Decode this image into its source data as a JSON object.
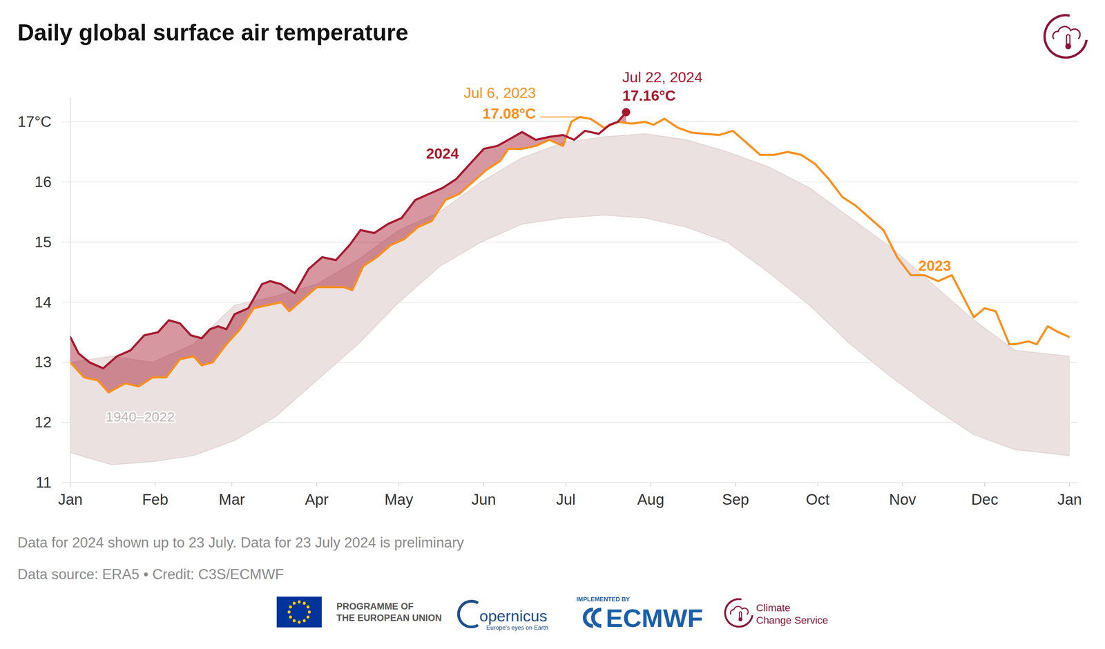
{
  "chart_data": {
    "type": "line",
    "title": "Daily global surface air temperature",
    "grid": true,
    "xlim": [
      0,
      365
    ],
    "xticks": [
      {
        "value": 0,
        "label": "Jan"
      },
      {
        "value": 31,
        "label": "Feb"
      },
      {
        "value": 59,
        "label": "Mar"
      },
      {
        "value": 90,
        "label": "Apr"
      },
      {
        "value": 120,
        "label": "May"
      },
      {
        "value": 151,
        "label": "Jun"
      },
      {
        "value": 181,
        "label": "Jul"
      },
      {
        "value": 212,
        "label": "Aug"
      },
      {
        "value": 243,
        "label": "Sep"
      },
      {
        "value": 273,
        "label": "Oct"
      },
      {
        "value": 304,
        "label": "Nov"
      },
      {
        "value": 334,
        "label": "Dec"
      },
      {
        "value": 365,
        "label": "Jan"
      }
    ],
    "ylim": [
      11,
      17.4
    ],
    "yticks": [
      11,
      12,
      13,
      14,
      15,
      16,
      {
        "value": 17,
        "label": "17°C"
      }
    ],
    "series": [
      {
        "name": "1940–2022",
        "type": "band",
        "color": "#ece1e1",
        "x": [
          0,
          15,
          30,
          45,
          60,
          75,
          90,
          105,
          120,
          135,
          150,
          165,
          180,
          195,
          210,
          225,
          240,
          255,
          270,
          285,
          300,
          315,
          330,
          345,
          365
        ],
        "values": [
          13.0,
          13.1,
          13.0,
          13.3,
          13.95,
          14.1,
          14.3,
          14.7,
          15.2,
          15.5,
          16.0,
          16.4,
          16.65,
          16.75,
          16.8,
          16.7,
          16.5,
          16.25,
          15.9,
          15.4,
          14.9,
          14.3,
          13.7,
          13.2,
          13.1
        ],
        "lower": [
          11.5,
          11.3,
          11.35,
          11.45,
          11.7,
          12.1,
          12.7,
          13.3,
          14.0,
          14.6,
          15.0,
          15.3,
          15.4,
          15.45,
          15.4,
          15.25,
          15.0,
          14.5,
          13.95,
          13.3,
          12.75,
          12.25,
          11.8,
          11.55,
          11.45
        ]
      },
      {
        "name": "2023",
        "type": "line",
        "color": "#f7901e",
        "x": [
          0,
          5,
          10,
          14,
          20,
          25,
          30,
          35,
          40,
          45,
          48,
          52,
          57,
          62,
          67,
          72,
          77,
          80,
          85,
          90,
          95,
          100,
          103,
          107,
          112,
          117,
          122,
          127,
          132,
          137,
          142,
          147,
          152,
          157,
          160,
          165,
          170,
          175,
          180,
          183,
          186,
          190,
          195,
          200,
          205,
          210,
          213,
          217,
          222,
          227,
          232,
          237,
          242,
          247,
          252,
          257,
          262,
          267,
          272,
          277,
          282,
          287,
          292,
          297,
          302,
          307,
          312,
          317,
          322,
          326,
          330,
          334,
          338,
          343,
          345,
          350,
          353,
          357,
          361,
          365
        ],
        "values": [
          13.0,
          12.75,
          12.7,
          12.5,
          12.65,
          12.6,
          12.75,
          12.75,
          13.05,
          13.1,
          12.95,
          13.0,
          13.3,
          13.55,
          13.9,
          13.95,
          14.0,
          13.85,
          14.05,
          14.25,
          14.25,
          14.25,
          14.2,
          14.6,
          14.75,
          14.95,
          15.05,
          15.25,
          15.35,
          15.7,
          15.8,
          16.0,
          16.2,
          16.35,
          16.55,
          16.55,
          16.6,
          16.7,
          16.6,
          17.0,
          17.08,
          17.05,
          16.9,
          17.0,
          16.97,
          17.0,
          16.95,
          17.05,
          16.9,
          16.82,
          16.8,
          16.78,
          16.85,
          16.65,
          16.45,
          16.45,
          16.5,
          16.45,
          16.3,
          16.05,
          15.75,
          15.6,
          15.4,
          15.2,
          14.75,
          14.45,
          14.45,
          14.35,
          14.45,
          14.1,
          13.75,
          13.9,
          13.85,
          13.3,
          13.3,
          13.35,
          13.3,
          13.6,
          13.5,
          13.42
        ]
      },
      {
        "name": "2024",
        "type": "line",
        "color": "#a6192e",
        "x": [
          0,
          3,
          7,
          12,
          17,
          22,
          27,
          32,
          36,
          40,
          44,
          48,
          51,
          54,
          57,
          60,
          65,
          70,
          73,
          77,
          82,
          87,
          92,
          97,
          102,
          106,
          111,
          116,
          121,
          126,
          131,
          136,
          141,
          146,
          151,
          156,
          160,
          165,
          170,
          175,
          180,
          184,
          188,
          193,
          197,
          200,
          203
        ],
        "values": [
          13.42,
          13.15,
          13.0,
          12.9,
          13.1,
          13.2,
          13.45,
          13.5,
          13.7,
          13.65,
          13.45,
          13.4,
          13.55,
          13.6,
          13.55,
          13.8,
          13.9,
          14.3,
          14.35,
          14.3,
          14.15,
          14.55,
          14.75,
          14.7,
          14.95,
          15.2,
          15.15,
          15.3,
          15.4,
          15.7,
          15.8,
          15.9,
          16.05,
          16.3,
          16.55,
          16.6,
          16.7,
          16.83,
          16.7,
          16.75,
          16.78,
          16.7,
          16.85,
          16.8,
          16.95,
          17.0,
          17.16
        ]
      }
    ],
    "annotations": [
      {
        "label": "Jul 6, 2023",
        "value_label": "17.08°C",
        "x": 186,
        "y": 17.08,
        "color": "#f7901e",
        "marker": "none"
      },
      {
        "label": "Jul 22, 2024",
        "value_label": "17.16°C",
        "x": 203,
        "y": 17.16,
        "color": "#a6192e",
        "marker": "circle"
      }
    ],
    "footnotes": [
      "Data for 2024 shown up to 23 July. Data for 23 July 2024 is preliminary",
      "Data source: ERA5 • Credit: C3S/ECMWF"
    ]
  },
  "footer": {
    "logos": [
      [
        "PROGRAMME OF",
        "THE EUROPEAN UNION"
      ],
      [
        "opernicus",
        "Europe's eyes on Earth"
      ],
      [
        "IMPLEMENTED BY",
        "ECMWF"
      ],
      [
        "Climate",
        "Change Service"
      ]
    ]
  }
}
